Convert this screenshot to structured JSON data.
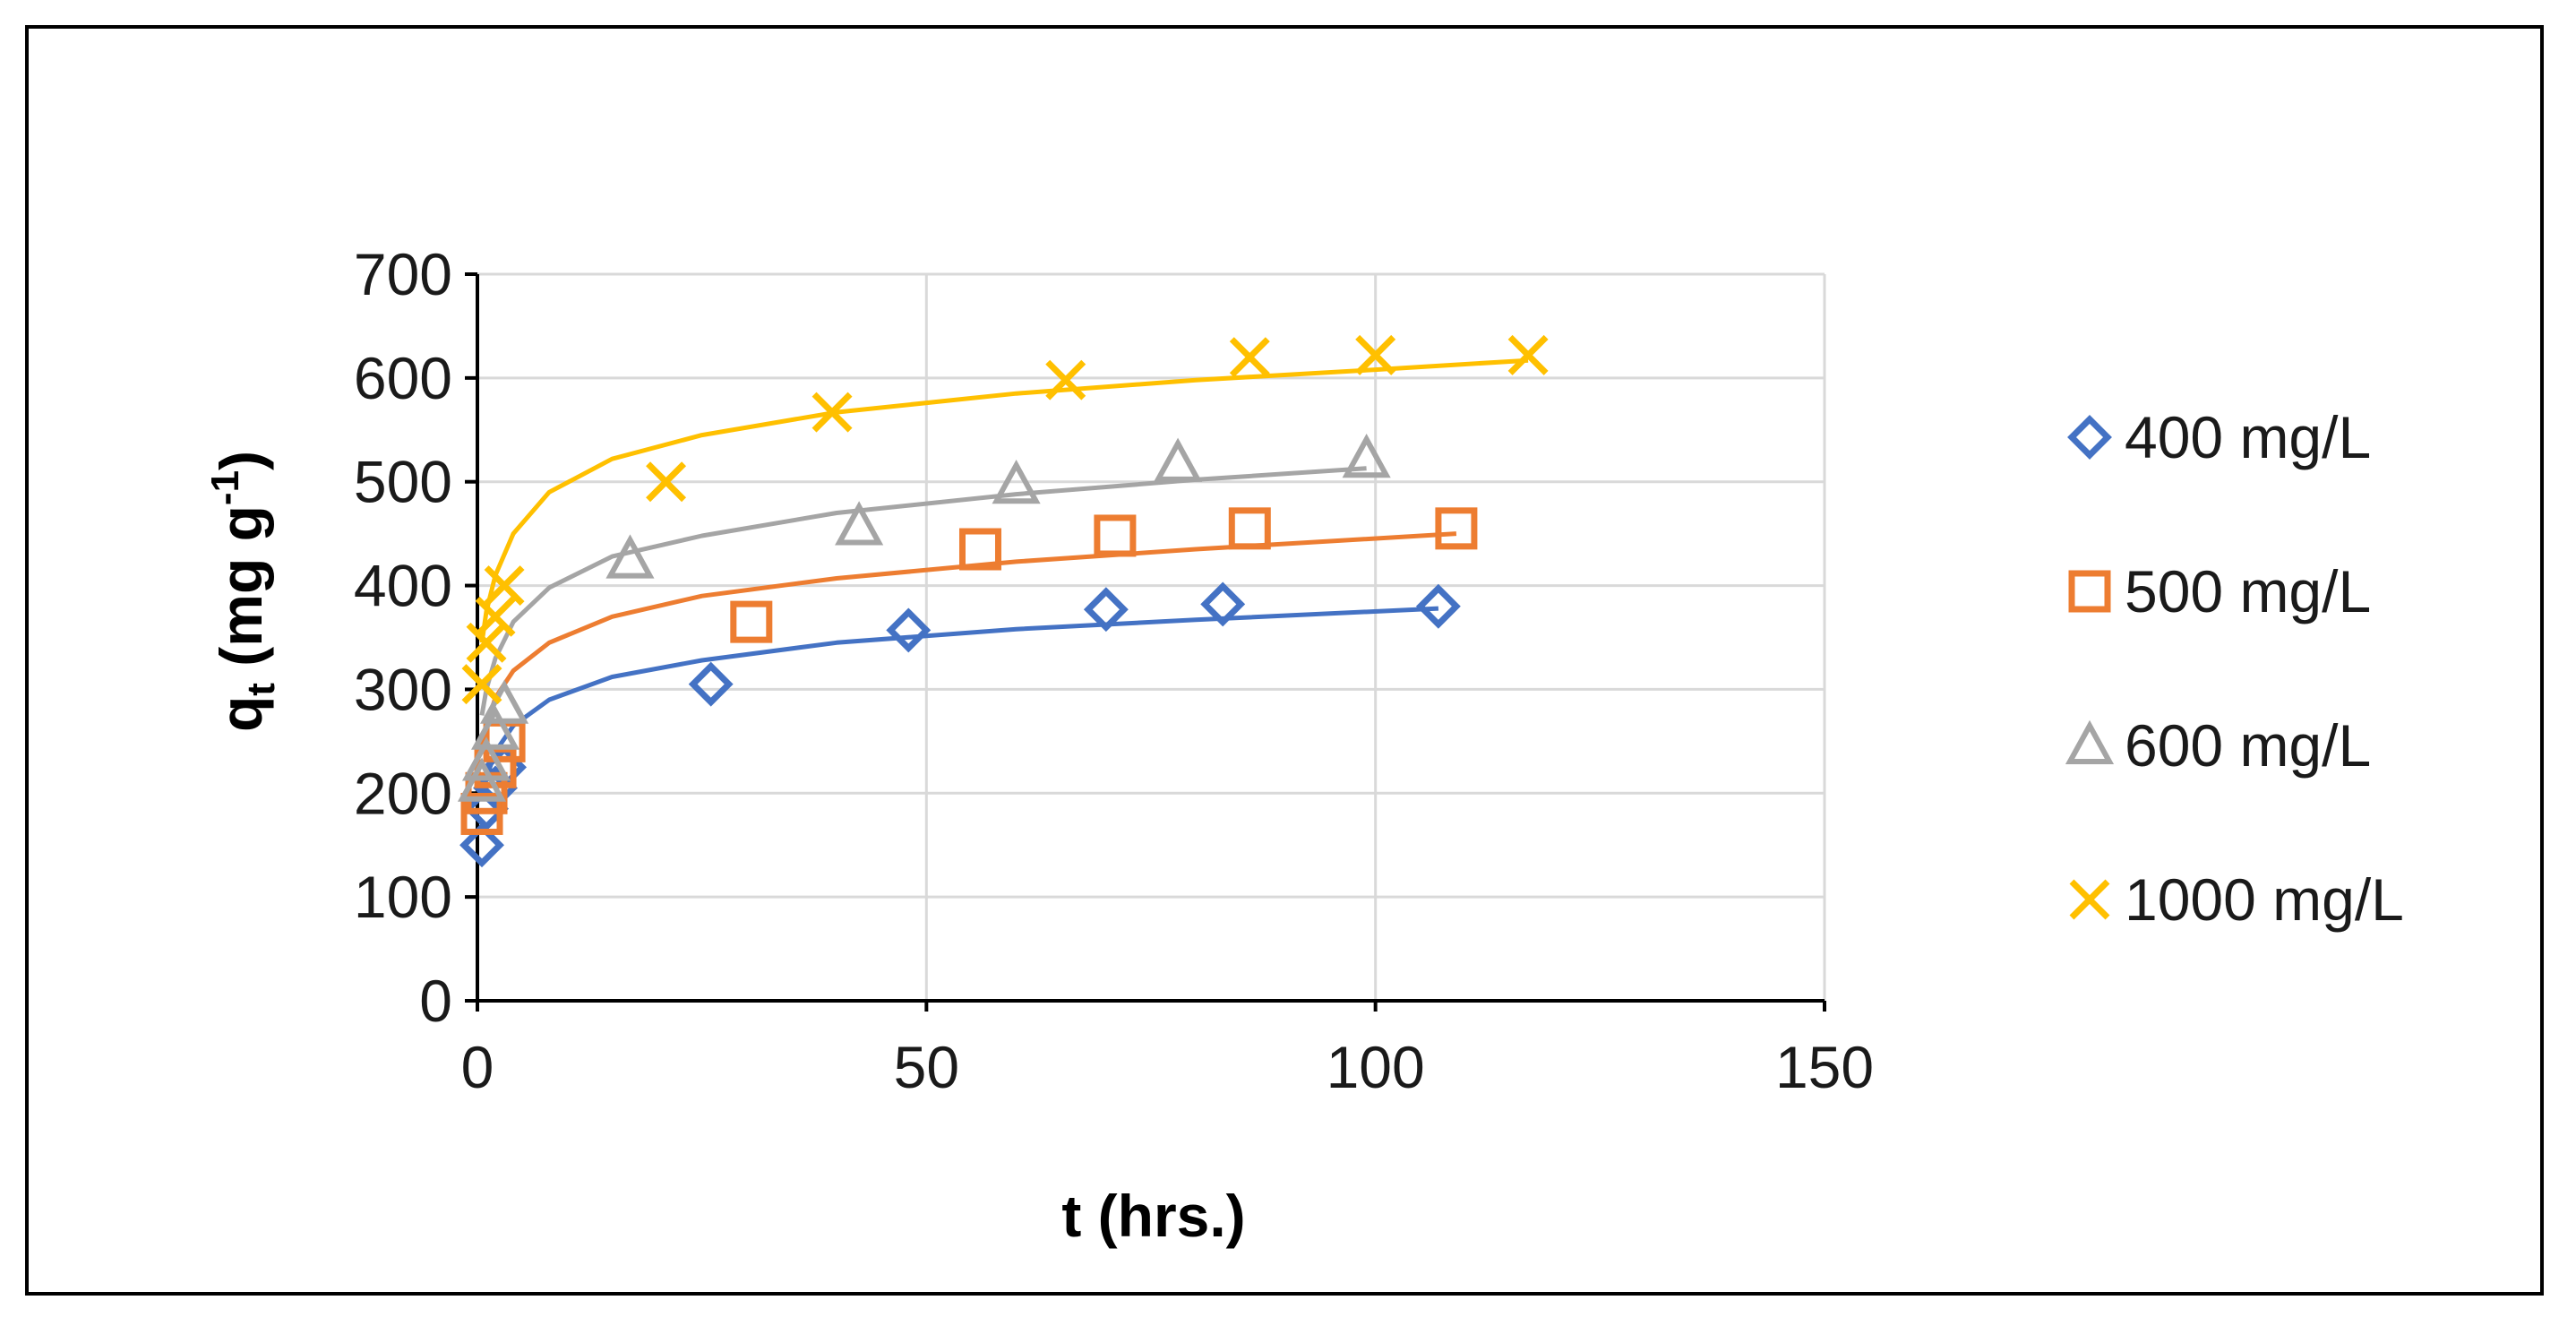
{
  "chart_data": {
    "type": "scatter",
    "xlabel": "t (hrs.)",
    "ylabel_main": "q",
    "ylabel_sub": "t",
    "ylabel_unit_base": " (mg g",
    "ylabel_unit_sup": "-1",
    "ylabel_unit_close": ")",
    "xlim": [
      0,
      150
    ],
    "ylim": [
      0,
      700
    ],
    "xticks": [
      0,
      50,
      100,
      150
    ],
    "yticks": [
      0,
      100,
      200,
      300,
      400,
      500,
      600,
      700
    ],
    "grid": true,
    "legend_position": "right",
    "series": [
      {
        "name": "400 mg/L",
        "marker": "diamond",
        "color": "#4472C4",
        "x": [
          0.5,
          1,
          2,
          3,
          26,
          48,
          70,
          83,
          107
        ],
        "y": [
          150,
          185,
          205,
          225,
          305,
          357,
          377,
          382,
          380
        ],
        "fit": [
          [
            0.5,
            195
          ],
          [
            1,
            215
          ],
          [
            2,
            240
          ],
          [
            4,
            265
          ],
          [
            8,
            290
          ],
          [
            15,
            312
          ],
          [
            25,
            328
          ],
          [
            40,
            345
          ],
          [
            60,
            358
          ],
          [
            80,
            367
          ],
          [
            107,
            378
          ]
        ]
      },
      {
        "name": "500 mg/L",
        "marker": "square",
        "color": "#ED7D31",
        "x": [
          0.5,
          1,
          2,
          3,
          30.5,
          56,
          71,
          86,
          109
        ],
        "y": [
          180,
          200,
          225,
          250,
          365,
          435,
          448,
          455,
          455
        ],
        "fit": [
          [
            0.5,
            245
          ],
          [
            1,
            265
          ],
          [
            2,
            292
          ],
          [
            4,
            318
          ],
          [
            8,
            345
          ],
          [
            15,
            370
          ],
          [
            25,
            390
          ],
          [
            40,
            407
          ],
          [
            60,
            423
          ],
          [
            80,
            435
          ],
          [
            109,
            450
          ]
        ]
      },
      {
        "name": "600 mg/L",
        "marker": "triangle",
        "color": "#A5A5A5",
        "x": [
          0.5,
          1,
          2,
          3,
          17,
          42.5,
          60,
          78,
          99
        ],
        "y": [
          210,
          230,
          260,
          285,
          425,
          457,
          497,
          518,
          522
        ],
        "fit": [
          [
            0.5,
            275
          ],
          [
            1,
            300
          ],
          [
            2,
            330
          ],
          [
            4,
            365
          ],
          [
            8,
            398
          ],
          [
            15,
            428
          ],
          [
            25,
            448
          ],
          [
            40,
            470
          ],
          [
            60,
            488
          ],
          [
            80,
            502
          ],
          [
            99,
            513
          ]
        ]
      },
      {
        "name": "1000 mg/L",
        "marker": "x",
        "color": "#FFC000",
        "x": [
          0.5,
          1,
          2,
          3,
          21,
          39.5,
          65.5,
          86,
          100,
          117
        ],
        "y": [
          305,
          345,
          370,
          400,
          500,
          567,
          598,
          620,
          622,
          622
        ],
        "fit": [
          [
            0.5,
            345
          ],
          [
            1,
            375
          ],
          [
            2,
            410
          ],
          [
            4,
            450
          ],
          [
            8,
            490
          ],
          [
            15,
            522
          ],
          [
            25,
            545
          ],
          [
            40,
            567
          ],
          [
            60,
            585
          ],
          [
            80,
            598
          ],
          [
            100,
            608
          ],
          [
            117,
            617
          ]
        ]
      }
    ]
  }
}
